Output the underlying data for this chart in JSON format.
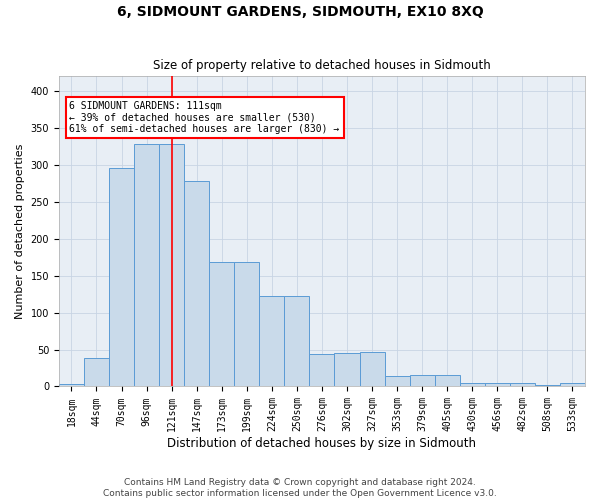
{
  "title": "6, SIDMOUNT GARDENS, SIDMOUTH, EX10 8XQ",
  "subtitle": "Size of property relative to detached houses in Sidmouth",
  "xlabel": "Distribution of detached houses by size in Sidmouth",
  "ylabel": "Number of detached properties",
  "bar_labels": [
    "18sqm",
    "44sqm",
    "70sqm",
    "96sqm",
    "121sqm",
    "147sqm",
    "173sqm",
    "199sqm",
    "224sqm",
    "250sqm",
    "276sqm",
    "302sqm",
    "327sqm",
    "353sqm",
    "379sqm",
    "405sqm",
    "430sqm",
    "456sqm",
    "482sqm",
    "508sqm",
    "533sqm"
  ],
  "bar_values": [
    3,
    38,
    295,
    328,
    328,
    278,
    168,
    168,
    122,
    122,
    44,
    45,
    46,
    14,
    15,
    15,
    5,
    5,
    5,
    2,
    5
  ],
  "bar_color": "#c9daea",
  "bar_edge_color": "#5b9bd5",
  "vline_position": 4.5,
  "annotation_text_line0": "6 SIDMOUNT GARDENS: 111sqm",
  "annotation_text_line1": "← 39% of detached houses are smaller (530)",
  "annotation_text_line2": "61% of semi-detached houses are larger (830) →",
  "annotation_box_facecolor": "white",
  "annotation_box_edgecolor": "red",
  "vline_color": "red",
  "footer_line1": "Contains HM Land Registry data © Crown copyright and database right 2024.",
  "footer_line2": "Contains public sector information licensed under the Open Government Licence v3.0.",
  "ylim": [
    0,
    420
  ],
  "yticks": [
    0,
    50,
    100,
    150,
    200,
    250,
    300,
    350,
    400
  ],
  "grid_color": "#c8d4e4",
  "bg_color": "#e8eef5",
  "title_fontsize": 10,
  "subtitle_fontsize": 8.5,
  "ylabel_fontsize": 8,
  "xlabel_fontsize": 8.5,
  "tick_fontsize": 7,
  "footer_fontsize": 6.5
}
